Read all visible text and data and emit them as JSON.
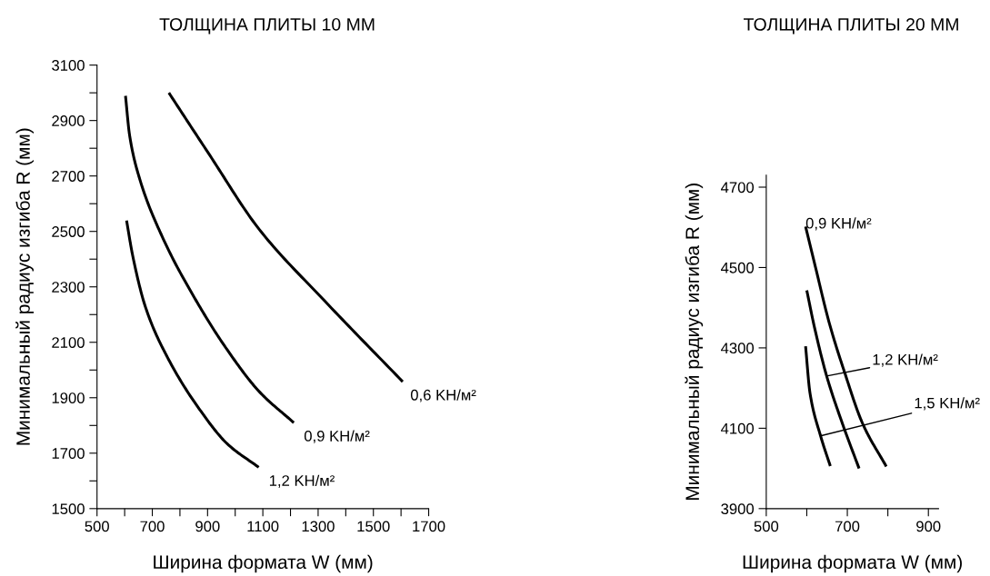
{
  "chart_data": [
    {
      "type": "line",
      "title": "ТОЛЩИНА ПЛИТЫ 10 ММ",
      "xlabel": "Ширина формата W (мм)",
      "ylabel": "Минимальный радиус изгиба R (мм)",
      "xlim": [
        500,
        1700
      ],
      "ylim": [
        1500,
        3100
      ],
      "xticks": [
        500,
        {
          "value": 600,
          "label": null
        },
        700,
        {
          "value": 800,
          "label": null
        },
        900,
        {
          "value": 1000,
          "label": null
        },
        1100,
        {
          "value": 1200,
          "label": null
        },
        1300,
        {
          "value": 1400,
          "label": null
        },
        1500,
        {
          "value": 1600,
          "label": null
        },
        1700
      ],
      "yticks": [
        1500,
        {
          "value": 1600,
          "label": null
        },
        1700,
        {
          "value": 1800,
          "label": null
        },
        1900,
        {
          "value": 2000,
          "label": null
        },
        2100,
        {
          "value": 2200,
          "label": null
        },
        2300,
        {
          "value": 2400,
          "label": null
        },
        2500,
        {
          "value": 2600,
          "label": null
        },
        2700,
        {
          "value": 2800,
          "label": null
        },
        2900,
        {
          "value": 3000,
          "label": null
        },
        3100
      ],
      "grid": false,
      "legend": false,
      "marker": "none",
      "line_style": "solid",
      "series": [
        {
          "name": "0,6 KH/м²",
          "color": "#000000",
          "x": [
            760,
            900,
            1088,
            1324,
            1606
          ],
          "values": [
            3000,
            2787,
            2506,
            2249,
            1958
          ]
        },
        {
          "name": "0,9 KH/м²",
          "color": "#000000",
          "x": [
            603,
            618,
            653,
            735,
            853,
            971,
            1088,
            1212
          ],
          "values": [
            2989,
            2846,
            2694,
            2483,
            2260,
            2073,
            1921,
            1810
          ]
        },
        {
          "name": "1,2 KH/м²",
          "color": "#000000",
          "x": [
            607,
            629,
            676,
            759,
            876,
            971,
            1085
          ],
          "values": [
            2539,
            2413,
            2225,
            2038,
            1851,
            1734,
            1649
          ]
        }
      ]
    },
    {
      "type": "line",
      "title": "ТОЛЩИНА ПЛИТЫ 20 ММ",
      "xlabel": "Ширина формата W (мм)",
      "ylabel": "Минимальный радиус изгиба R (мм)",
      "xlim": [
        500,
        925
      ],
      "ylim": [
        3900,
        4730
      ],
      "xticks": [
        500,
        {
          "value": 600,
          "label": null
        },
        700,
        {
          "value": 800,
          "label": null
        },
        900
      ],
      "yticks": [
        3900,
        4100,
        4300,
        4500,
        4700
      ],
      "grid": false,
      "legend": false,
      "marker": "none",
      "line_style": "solid",
      "series": [
        {
          "name": "0,9 KH/м²",
          "color": "#000000",
          "x": [
            597,
            619,
            656,
            693,
            738,
            796
          ],
          "values": [
            4602,
            4511,
            4360,
            4240,
            4111,
            4005
          ]
        },
        {
          "name": "1,2 KH/м²",
          "color": "#000000",
          "x": [
            600,
            619,
            649,
            686,
            729
          ],
          "values": [
            4443,
            4351,
            4230,
            4117,
            4000
          ]
        },
        {
          "name": "1,5 KH/м²",
          "color": "#000000",
          "x": [
            597,
            608,
            634,
            658
          ],
          "values": [
            4304,
            4187,
            4081,
            4006
          ]
        }
      ]
    }
  ]
}
